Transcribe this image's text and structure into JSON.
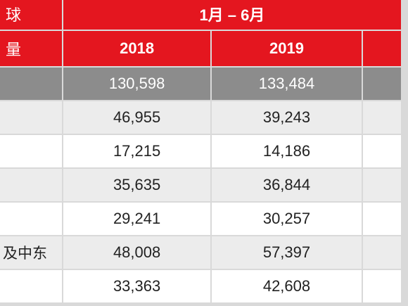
{
  "table": {
    "header": {
      "region_line1": "球",
      "region_line2": "量",
      "period": "1月 – 6月",
      "years": [
        "2018",
        "2019"
      ]
    },
    "total_row": {
      "values": [
        "130,598",
        "133,484"
      ]
    },
    "rows": [
      {
        "region": "",
        "values": [
          "46,955",
          "39,243"
        ]
      },
      {
        "region": "",
        "values": [
          "17,215",
          "14,186"
        ]
      },
      {
        "region": "",
        "values": [
          "35,635",
          "36,844"
        ]
      },
      {
        "region": "",
        "values": [
          "29,241",
          "30,257"
        ]
      },
      {
        "region": "及中东",
        "values": [
          "48,008",
          "57,397"
        ]
      },
      {
        "region": "",
        "values": [
          "33,363",
          "42,608"
        ]
      }
    ]
  },
  "colors": {
    "header_red": "#e4161f",
    "total_row_gray": "#8c8c8c",
    "row_light": "#ececec",
    "row_white": "#ffffff"
  }
}
